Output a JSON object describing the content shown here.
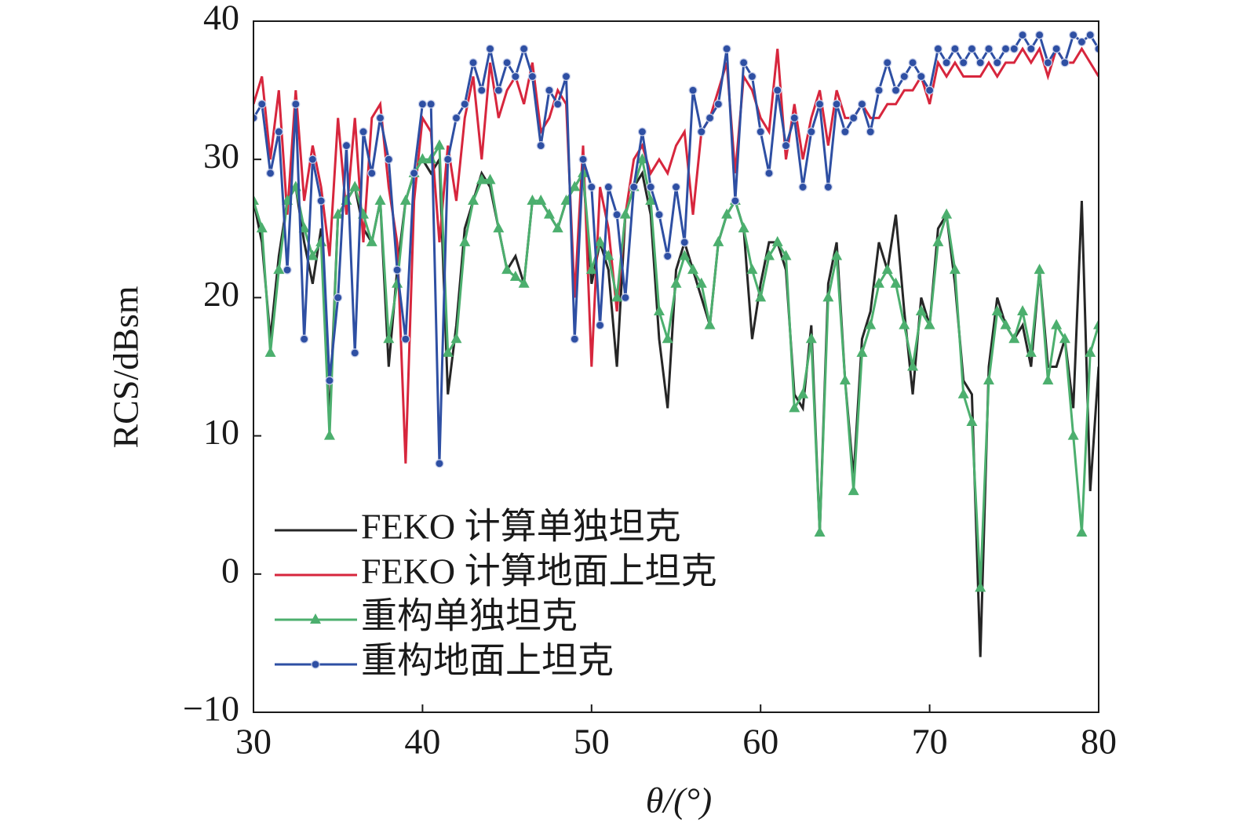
{
  "chart_data": {
    "type": "line",
    "xlabel": "θ/(°)",
    "ylabel": "RCS/dBsm",
    "x": [
      30,
      30.5,
      31,
      31.5,
      32,
      32.5,
      33,
      33.5,
      34,
      34.5,
      35,
      35.5,
      36,
      36.5,
      37,
      37.5,
      38,
      38.5,
      39,
      39.5,
      40,
      40.5,
      41,
      41.5,
      42,
      42.5,
      43,
      43.5,
      44,
      44.5,
      45,
      45.5,
      46,
      46.5,
      47,
      47.5,
      48,
      48.5,
      49,
      49.5,
      50,
      50.5,
      51,
      51.5,
      52,
      52.5,
      53,
      53.5,
      54,
      54.5,
      55,
      55.5,
      56,
      56.5,
      57,
      57.5,
      58,
      58.5,
      59,
      59.5,
      60,
      60.5,
      61,
      61.5,
      62,
      62.5,
      63,
      63.5,
      64,
      64.5,
      65,
      65.5,
      66,
      66.5,
      67,
      67.5,
      68,
      68.5,
      69,
      69.5,
      70,
      70.5,
      71,
      71.5,
      72,
      72.5,
      73,
      73.5,
      74,
      74.5,
      75,
      75.5,
      76,
      76.5,
      77,
      77.5,
      78,
      78.5,
      79,
      79.5,
      80
    ],
    "xlim": [
      30,
      80
    ],
    "xticks": [
      30,
      40,
      50,
      60,
      70,
      80
    ],
    "ylim": [
      -10,
      40
    ],
    "yticks": [
      {
        "value": -10,
        "label": "−10"
      },
      0,
      10,
      20,
      30,
      40
    ],
    "legend": "lower left",
    "series": [
      {
        "name": "FEKO 计算单独坦克",
        "color": "#262626",
        "marker": "none",
        "values": [
          27,
          24,
          17,
          23,
          27,
          28,
          24,
          21,
          25,
          11,
          26,
          27,
          28,
          25,
          24,
          27,
          15,
          22,
          27,
          29,
          30,
          29,
          30,
          13,
          18,
          25,
          27,
          29,
          28,
          25,
          22,
          23,
          21,
          27,
          27,
          26,
          25,
          27,
          28,
          29,
          21,
          24,
          22,
          15,
          26,
          28,
          29,
          26,
          17,
          12,
          22,
          24,
          22,
          20,
          18,
          24,
          26,
          27,
          25,
          17,
          21,
          24,
          24,
          22,
          13,
          12,
          18,
          3,
          21,
          24,
          14,
          7,
          17,
          19,
          24,
          22,
          26,
          19,
          13,
          20,
          18,
          25,
          26,
          21,
          14,
          13,
          -6,
          15,
          20,
          18,
          17,
          18,
          15,
          22,
          15,
          15,
          17,
          12,
          27,
          6,
          15
        ]
      },
      {
        "name": "FEKO 计算地面上坦克",
        "color": "#d7263d",
        "marker": "none",
        "values": [
          34,
          36,
          30,
          35,
          26,
          35,
          27,
          31,
          28,
          23,
          33,
          26,
          33,
          24,
          33,
          34,
          28,
          24,
          8,
          27,
          33,
          32,
          24,
          31,
          27,
          33,
          36,
          30,
          37,
          33,
          35,
          36,
          34,
          37,
          32,
          33,
          35,
          34,
          20,
          31,
          15,
          28,
          25,
          19,
          26,
          30,
          31,
          29,
          30,
          29,
          31,
          32,
          26,
          32,
          33,
          35,
          37,
          29,
          36,
          35,
          33,
          32,
          38,
          30,
          34,
          30,
          33,
          35,
          31,
          35,
          33,
          33,
          34,
          33,
          33,
          34,
          34,
          35,
          35,
          36,
          34,
          37,
          36,
          37,
          36,
          36,
          36,
          37,
          36,
          37,
          37,
          38,
          37,
          38,
          36,
          38,
          37,
          37,
          38,
          37,
          36
        ]
      },
      {
        "name": "重构单独坦克",
        "color": "#4caf6e",
        "marker": "triangle",
        "values": [
          27,
          25,
          16,
          22,
          27,
          28,
          25,
          23,
          24,
          10,
          26,
          27,
          28,
          26,
          24,
          27,
          17,
          21,
          27,
          29,
          30,
          30,
          31,
          16,
          17,
          24,
          27,
          28.5,
          28.5,
          25,
          22,
          21.5,
          21,
          27,
          27,
          26,
          25,
          27,
          28,
          29,
          22,
          24,
          23,
          20,
          26,
          28,
          30,
          27,
          19,
          17,
          21,
          23,
          22,
          21,
          18,
          24,
          26,
          27,
          25,
          22,
          20,
          23,
          24,
          23,
          12,
          13,
          17,
          3,
          20,
          23,
          14,
          6,
          16,
          18,
          21,
          22,
          21,
          18,
          15,
          19,
          18,
          24,
          26,
          22,
          13,
          11,
          -1,
          14,
          19,
          18,
          17,
          19,
          16,
          22,
          14,
          18,
          17,
          10,
          3,
          16,
          18
        ]
      },
      {
        "name": "重构地面上坦克",
        "color": "#2e4fa3",
        "marker": "circle",
        "values": [
          33,
          34,
          29,
          32,
          22,
          34,
          17,
          30,
          27,
          14,
          20,
          31,
          16,
          32,
          29,
          33,
          30,
          22,
          17,
          29,
          34,
          34,
          8,
          30,
          33,
          34,
          37,
          35,
          38,
          35,
          37,
          36,
          38,
          36,
          31,
          35,
          34,
          36,
          17,
          30,
          28,
          18,
          28,
          26,
          20,
          28,
          32,
          28,
          26,
          23,
          28,
          24,
          35,
          32,
          33,
          34,
          38,
          27,
          37,
          36,
          32,
          29,
          35,
          31,
          33,
          28,
          32,
          34,
          28,
          34,
          32,
          33,
          34,
          32,
          35,
          37,
          35,
          36,
          37,
          36,
          35,
          38,
          37,
          38,
          37,
          38,
          37,
          38,
          37,
          38,
          38,
          39,
          38,
          39,
          37,
          38,
          37,
          39,
          38.5,
          39,
          38
        ]
      }
    ]
  }
}
